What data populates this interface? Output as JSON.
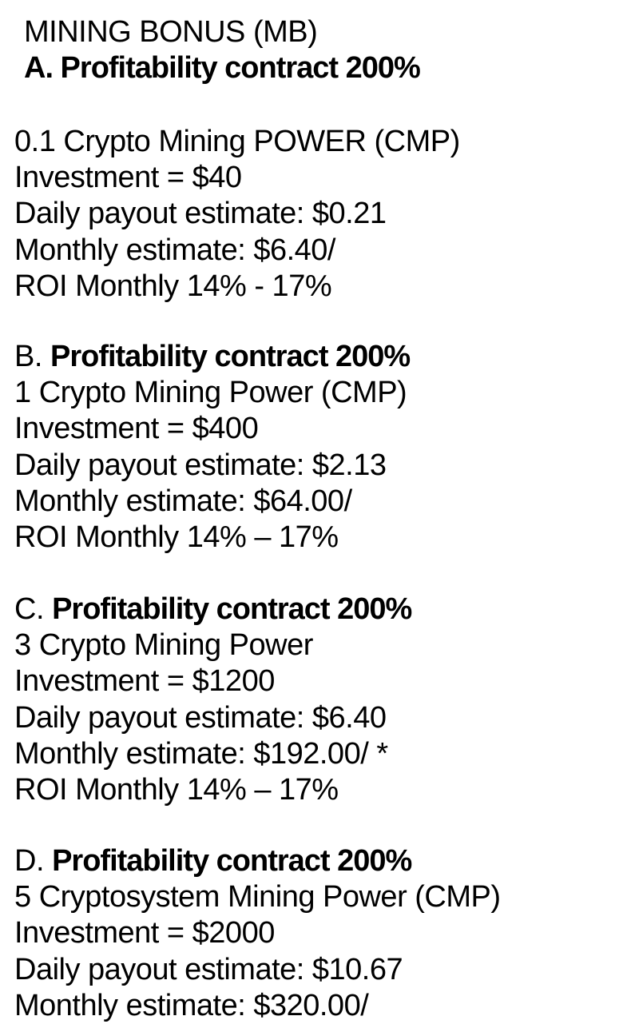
{
  "header": {
    "line1": "MINING BONUS (MB)",
    "line2": "A. Profitability contract 200%"
  },
  "plans": [
    {
      "lines": [
        "0.1 Crypto Mining POWER (CMP)",
        "Investment = $40",
        "Daily payout estimate: $0.21",
        "Monthly estimate: $6.40/",
        "ROI Monthly 14% - 17%"
      ]
    },
    {
      "letter": "B. ",
      "title": "Profitability contract 200%",
      "lines": [
        "1 Crypto Mining Power (CMP)",
        "Investment = $400",
        "Daily payout estimate: $2.13",
        "Monthly estimate: $64.00/",
        "ROI Monthly 14% – 17%"
      ]
    },
    {
      "letter": "C. ",
      "title": "Profitability contract 200%",
      "lines": [
        "3 Crypto Mining Power",
        "Investment = $1200",
        "Daily payout estimate: $6.40",
        "Monthly estimate: $192.00/ *",
        "ROI Monthly 14% – 17%"
      ]
    },
    {
      "letter": "D. ",
      "title": "Profitability contract 200%",
      "lines": [
        "5 Cryptosystem Mining Power (CMP)",
        "Investment = $2000",
        "Daily payout estimate: $10.67",
        "Monthly estimate: $320.00/"
      ]
    }
  ]
}
